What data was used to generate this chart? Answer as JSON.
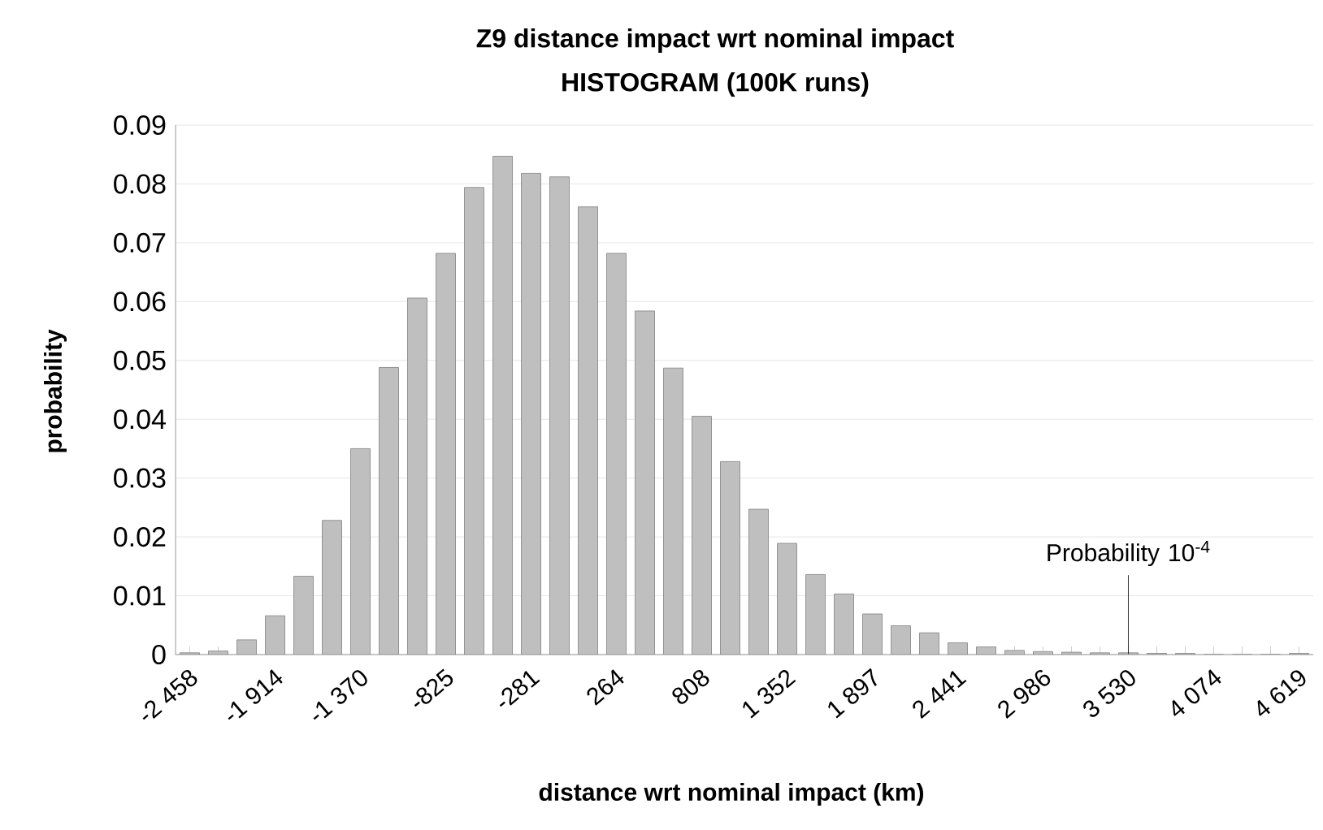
{
  "chart_data": {
    "type": "bar",
    "title": "Z9 distance impact wrt nominal impact",
    "subtitle": "HISTOGRAM  (100K runs)",
    "xlabel": "distance wrt nominal impact (km)",
    "ylabel": "probability",
    "categories": [
      "-2 458",
      null,
      null,
      "-1 914",
      null,
      null,
      "-1 370",
      null,
      null,
      "-825",
      null,
      null,
      "-281",
      null,
      null,
      "264",
      null,
      null,
      "808",
      null,
      null,
      "1 352",
      null,
      null,
      "1 897",
      null,
      null,
      "2 441",
      null,
      null,
      "2 986",
      null,
      null,
      "3 530",
      null,
      null,
      "4 074",
      null,
      null,
      "4 619"
    ],
    "values": [
      0.0003,
      0.0006,
      0.0025,
      0.0066,
      0.0133,
      0.0228,
      0.035,
      0.0488,
      0.0606,
      0.0682,
      0.0794,
      0.0847,
      0.0818,
      0.0812,
      0.0761,
      0.0682,
      0.0584,
      0.0487,
      0.0405,
      0.0328,
      0.0247,
      0.0189,
      0.0136,
      0.0103,
      0.0069,
      0.0049,
      0.0037,
      0.002,
      0.0013,
      0.0007,
      0.0005,
      0.0004,
      0.0003,
      0.0003,
      0.0002,
      0.0002,
      0,
      0,
      0,
      0.0002
    ],
    "color": "#bfbfbf",
    "ylim": [
      0,
      0.09
    ],
    "yticks": [
      0,
      0.01,
      0.02,
      0.03,
      0.04,
      0.05,
      0.06,
      0.07,
      0.08,
      0.09
    ],
    "grid": "y",
    "annotations": [
      {
        "text": "Probability 10$^{-4}$",
        "x": "3 530",
        "y": 0.0001
      }
    ]
  }
}
